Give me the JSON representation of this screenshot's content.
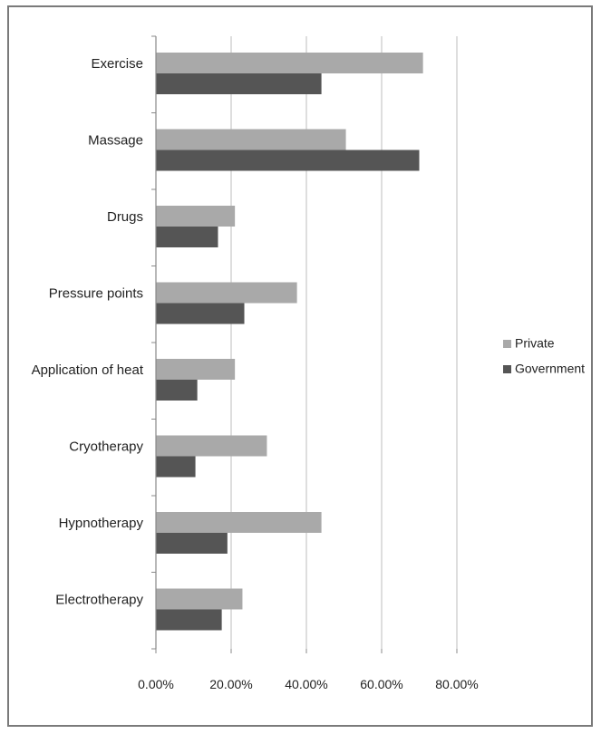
{
  "chart_data": {
    "type": "bar",
    "orientation": "horizontal",
    "categories": [
      "Exercise",
      "Massage",
      "Drugs",
      "Pressure points",
      "Application of heat",
      "Cryotherapy",
      "Hypnotherapy",
      "Electrotherapy"
    ],
    "series": [
      {
        "name": "Private",
        "color": "#a9a9a9",
        "values": [
          71,
          50.5,
          21,
          37.5,
          21,
          29.5,
          44,
          23
        ]
      },
      {
        "name": "Government",
        "color": "#555555",
        "values": [
          44,
          70,
          16.5,
          23.5,
          11,
          10.5,
          19,
          17.5
        ]
      }
    ],
    "xlim": [
      0,
      80
    ],
    "xticks": [
      "0.00%",
      "20.00%",
      "40.00%",
      "60.00%",
      "80.00%"
    ],
    "grid": true,
    "legend_position": "right"
  }
}
